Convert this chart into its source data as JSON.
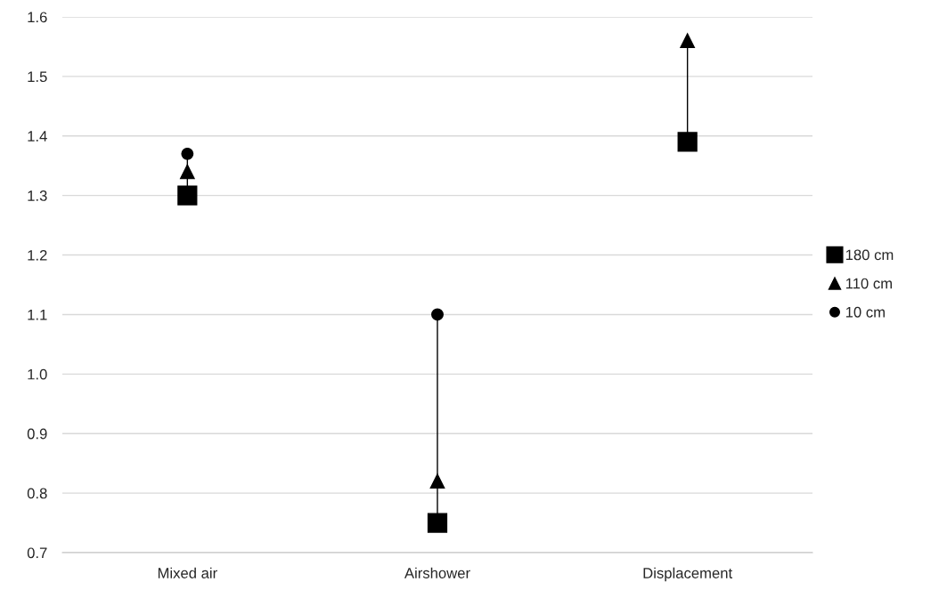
{
  "chart_data": {
    "type": "scatter",
    "categories": [
      "Mixed air",
      "Airshower",
      "Displacement"
    ],
    "series": [
      {
        "name": "180 cm",
        "color": "#000000",
        "marker": "square",
        "values": [
          1.3,
          0.75,
          1.39
        ]
      },
      {
        "name": "110 cm",
        "color": "#000000",
        "marker": "triangle",
        "values": [
          1.34,
          0.82,
          1.56
        ]
      },
      {
        "name": "10 cm",
        "color": "#000000",
        "marker": "circle",
        "values": [
          1.37,
          1.1,
          null
        ]
      }
    ],
    "ylim": [
      0.7,
      1.6
    ],
    "yticks": [
      {
        "value": 0.7,
        "label": "0.7"
      },
      {
        "value": 0.8,
        "label": "0.8"
      },
      {
        "value": 0.9,
        "label": "0.9"
      },
      {
        "value": 1.0,
        "label": "1.0"
      },
      {
        "value": 1.1,
        "label": "1.1"
      },
      {
        "value": 1.2,
        "label": "1.2"
      },
      {
        "value": 1.3,
        "label": "1.3"
      },
      {
        "value": 1.4,
        "label": "1.4"
      },
      {
        "value": 1.5,
        "label": "1.5"
      },
      {
        "value": 1.6,
        "label": "1.6"
      }
    ],
    "grid": "y",
    "legend": "right"
  }
}
